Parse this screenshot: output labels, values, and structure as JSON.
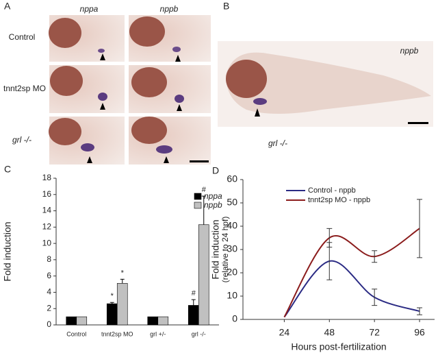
{
  "panel_a": {
    "label": "A",
    "columns": [
      "nppa",
      "nppb"
    ],
    "rows": [
      "Control",
      "tnnt2sp MO",
      "grl -/-"
    ]
  },
  "panel_b": {
    "label": "B",
    "probe": "nppb",
    "genotype": "grl -/-"
  },
  "chart_data": [
    {
      "type": "bar",
      "label": "C",
      "y_label": "Fold induction",
      "categories": [
        "Control",
        "tnnt2sp MO",
        "grl +/-",
        "grl -/-"
      ],
      "series": [
        {
          "name": "nppa",
          "color": "#000000",
          "values": [
            1,
            2.6,
            1,
            2.4
          ],
          "errors": [
            null,
            0.15,
            null,
            0.7
          ],
          "annotations": [
            null,
            "*",
            null,
            "#"
          ]
        },
        {
          "name": "nppb",
          "color": "#c0c0c0",
          "values": [
            1,
            5.1,
            1,
            12.3
          ],
          "errors": [
            null,
            0.5,
            null,
            3.5
          ],
          "annotations": [
            null,
            "*",
            null,
            "#"
          ]
        }
      ],
      "ylim": [
        0,
        18
      ],
      "yticks": [
        0,
        2,
        4,
        6,
        8,
        10,
        12,
        14,
        16,
        18
      ],
      "legend": "upper right"
    },
    {
      "type": "line",
      "label": "D",
      "y_label": "Fold induction",
      "y_label_2": "(relative to 24 hpf)",
      "x_label": "Hours post-fertilization",
      "x": [
        24,
        48,
        72,
        96
      ],
      "series": [
        {
          "name": "Control - nppb",
          "color": "#2b2b84",
          "values": [
            1,
            25,
            9.5,
            3.5
          ],
          "errors": [
            null,
            8,
            3.5,
            1.5
          ]
        },
        {
          "name": "tnnt2sp MO - nppb",
          "color": "#8b1c1c",
          "values": [
            1,
            35,
            27,
            39
          ],
          "errors": [
            null,
            4,
            2.5,
            12.5
          ]
        }
      ],
      "xlim": [
        2,
        104
      ],
      "xticks": [
        24,
        48,
        72,
        96
      ],
      "ylim": [
        0,
        60
      ],
      "yticks": [
        0,
        10,
        20,
        30,
        40,
        50,
        60
      ],
      "legend": "upper center"
    }
  ]
}
